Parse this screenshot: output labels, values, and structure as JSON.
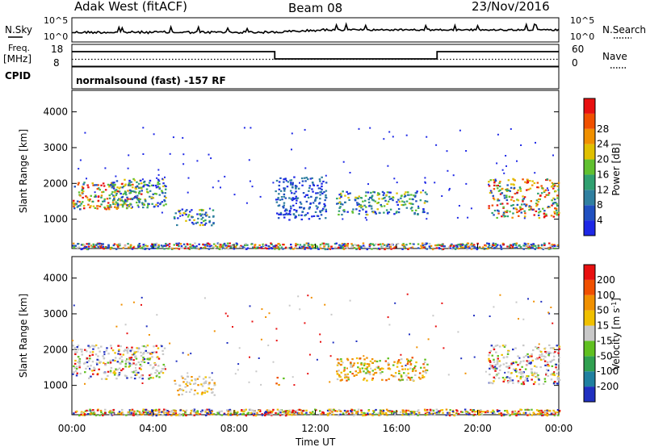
{
  "header": {
    "site": "Adak West (fitACF)",
    "beam": "Beam 08",
    "date": "23/Nov/2016"
  },
  "top_panels": {
    "nsky_label": "N.Sky",
    "nsearch_label": "N.Search",
    "nsky_ticks": [
      "10^5",
      "10^0"
    ],
    "nsearch_ticks": [
      "10^5",
      "10^0"
    ],
    "freq_label": "Freq.",
    "freq_unit": "[MHz]",
    "freq_ticks": [
      "18",
      "8"
    ],
    "nave_label": "Nave",
    "nave_ticks": [
      "60",
      "0"
    ],
    "cpid_label": "CPID",
    "cpid_text": "normalsound (fast) -157 RF"
  },
  "chart_data": [
    {
      "type": "heatmap",
      "name": "power",
      "ylabel": "Slant Range [km]",
      "xlabel": "",
      "ylim": [
        180,
        4600
      ],
      "yticks": [
        "1000",
        "2000",
        "3000",
        "4000"
      ],
      "colorbar": {
        "label": "Power [dB]",
        "ticks": [
          "4",
          "8",
          "12",
          "16",
          "20",
          "24",
          "28"
        ],
        "colors": [
          "#1e28e6",
          "#2050c0",
          "#3080a0",
          "#30a070",
          "#60c030",
          "#e0c000",
          "#f09000",
          "#f05000",
          "#e81010"
        ]
      },
      "regions": [
        {
          "t0": 0.0,
          "t1": 3.4,
          "r0": 1300,
          "r1": 2050,
          "level": "strong"
        },
        {
          "t0": 1.7,
          "t1": 4.6,
          "r0": 1350,
          "r1": 2150,
          "level": "medium"
        },
        {
          "t0": 5.0,
          "t1": 7.0,
          "r0": 850,
          "r1": 1300,
          "level": "medium"
        },
        {
          "t0": 10.0,
          "t1": 12.5,
          "r0": 1000,
          "r1": 2200,
          "level": "weak"
        },
        {
          "t0": 13.0,
          "t1": 17.5,
          "r0": 1150,
          "r1": 1800,
          "level": "medium"
        },
        {
          "t0": 20.5,
          "t1": 24.0,
          "r0": 1050,
          "r1": 2150,
          "level": "strong"
        },
        {
          "t0": 0.0,
          "t1": 24.0,
          "r0": 180,
          "r1": 350,
          "level": "ground"
        }
      ]
    },
    {
      "type": "heatmap",
      "name": "velocity",
      "ylabel": "Slant Range [km]",
      "xlabel": "Time UT",
      "ylim": [
        180,
        4600
      ],
      "yticks": [
        "1000",
        "2000",
        "3000",
        "4000"
      ],
      "xticks": [
        "00:00",
        "04:00",
        "08:00",
        "12:00",
        "16:00",
        "20:00",
        "00:00"
      ],
      "colorbar": {
        "label": "Velocity [m s",
        "label_sup": "-1",
        "label_end": "]",
        "ticks": [
          "200",
          "100",
          "50",
          "15",
          "-15",
          "-50",
          "-100",
          "-200"
        ],
        "colors": [
          "#2030c0",
          "#2080a0",
          "#30a050",
          "#60c020",
          "#c8c8c8",
          "#f0c000",
          "#f09000",
          "#f05000",
          "#e81010"
        ]
      },
      "regions": [
        {
          "t0": 0.0,
          "t1": 4.6,
          "r0": 1200,
          "r1": 2150,
          "level": "grey"
        },
        {
          "t0": 5.0,
          "t1": 7.0,
          "r0": 750,
          "r1": 1300,
          "level": "mixed"
        },
        {
          "t0": 10.0,
          "t1": 10.4,
          "r0": 1000,
          "r1": 1250,
          "level": "neg"
        },
        {
          "t0": 13.0,
          "t1": 17.5,
          "r0": 1150,
          "r1": 1800,
          "level": "neg"
        },
        {
          "t0": 20.5,
          "t1": 24.0,
          "r0": 1050,
          "r1": 2150,
          "level": "grey"
        },
        {
          "t0": 0.0,
          "t1": 24.0,
          "r0": 180,
          "r1": 350,
          "level": "ground"
        }
      ]
    }
  ]
}
